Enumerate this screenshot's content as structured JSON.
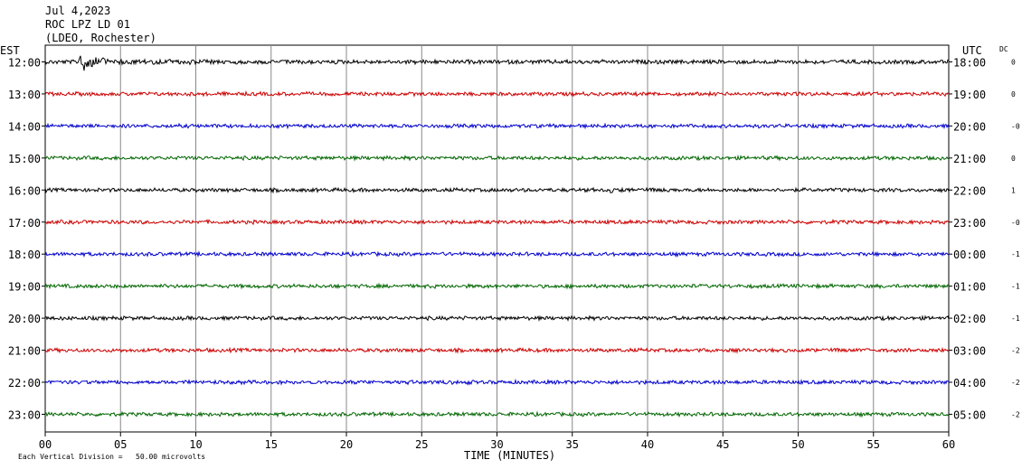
{
  "header": {
    "date": "Jul 4,2023",
    "station": "ROC LPZ LD 01",
    "network": "(LDEO, Rochester)"
  },
  "left_axis_label": "EST",
  "right_axis_label": "UTC",
  "dc_label": "DC",
  "footer_note": "Each Vertical Division =   50.00 microvolts",
  "chart_data": {
    "type": "line",
    "title": "ROC LPZ LD 01",
    "xlabel": "TIME (MINUTES)",
    "xlim": [
      0,
      60
    ],
    "x_ticks": [
      "00",
      "05",
      "10",
      "15",
      "20",
      "25",
      "30",
      "35",
      "40",
      "45",
      "50",
      "55",
      "60"
    ],
    "grid": true,
    "vertical_division": "50.00 microvolts",
    "trace_colors": [
      "#000000",
      "#cc0000",
      "#0000cc",
      "#006600"
    ],
    "rows": [
      {
        "est": "12:00",
        "utc": "18:00",
        "dc": "0",
        "color": "#000000",
        "amp": 2.6,
        "events": [
          {
            "t": 2.2,
            "dur": 2.0,
            "amp": 12
          },
          {
            "t": 4.5,
            "dur": 13.5,
            "amp": 4
          }
        ]
      },
      {
        "est": "13:00",
        "utc": "19:00",
        "dc": "0",
        "color": "#cc0000",
        "amp": 2.4,
        "events": []
      },
      {
        "est": "14:00",
        "utc": "20:00",
        "dc": "-0",
        "color": "#0000cc",
        "amp": 2.4,
        "events": []
      },
      {
        "est": "15:00",
        "utc": "21:00",
        "dc": "0",
        "color": "#006600",
        "amp": 2.4,
        "events": []
      },
      {
        "est": "16:00",
        "utc": "22:00",
        "dc": "1",
        "color": "#000000",
        "amp": 2.4,
        "events": [
          {
            "t": 37.5,
            "dur": 1.5,
            "amp": 4
          },
          {
            "t": 41.0,
            "dur": 2.0,
            "amp": 3
          }
        ]
      },
      {
        "est": "17:00",
        "utc": "23:00",
        "dc": "-0",
        "color": "#cc0000",
        "amp": 2.4,
        "events": []
      },
      {
        "est": "18:00",
        "utc": "00:00",
        "dc": "-1",
        "color": "#0000cc",
        "amp": 2.4,
        "events": []
      },
      {
        "est": "19:00",
        "utc": "01:00",
        "dc": "-1",
        "color": "#006600",
        "amp": 2.4,
        "events": []
      },
      {
        "est": "20:00",
        "utc": "02:00",
        "dc": "-1",
        "color": "#000000",
        "amp": 2.4,
        "events": []
      },
      {
        "est": "21:00",
        "utc": "03:00",
        "dc": "-2",
        "color": "#cc0000",
        "amp": 2.4,
        "events": [
          {
            "t": 42.0,
            "dur": 1.5,
            "amp": 3
          }
        ]
      },
      {
        "est": "22:00",
        "utc": "04:00",
        "dc": "-2",
        "color": "#0000cc",
        "amp": 2.4,
        "events": [
          {
            "t": 28.0,
            "dur": 0.8,
            "amp": 4
          }
        ]
      },
      {
        "est": "23:00",
        "utc": "05:00",
        "dc": "-2",
        "color": "#006600",
        "amp": 2.4,
        "events": [
          {
            "t": 27.0,
            "dur": 1.2,
            "amp": 3
          }
        ]
      }
    ]
  }
}
